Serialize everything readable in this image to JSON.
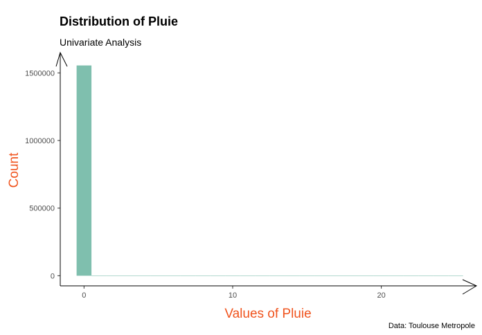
{
  "chart_data": {
    "type": "bar",
    "title": "Distribution of Pluie",
    "subtitle": "Univariate Analysis",
    "xlabel": "Values of Pluie",
    "ylabel": "Count",
    "caption": "Data: Toulouse Metropole",
    "xlim": [
      -1.6,
      26.4
    ],
    "ylim": [
      -75000,
      1650000
    ],
    "xticks": [
      0,
      10,
      20
    ],
    "yticks": [
      0,
      500000,
      1000000,
      1500000
    ],
    "bar_width": 1,
    "bins": [
      0,
      1,
      2,
      3,
      4,
      5,
      6,
      7,
      8,
      9,
      10,
      11,
      12,
      13,
      14,
      15,
      16,
      17,
      18,
      19,
      20,
      21,
      22,
      23,
      24,
      25
    ],
    "values": [
      1555000,
      0,
      0,
      0,
      0,
      0,
      0,
      0,
      0,
      0,
      0,
      0,
      0,
      0,
      0,
      0,
      0,
      0,
      0,
      0,
      0,
      0,
      0,
      0,
      0,
      0
    ],
    "grid": false,
    "legend": "none",
    "colors": {
      "bar": "#7fbfae",
      "axis_title": "#f0541e",
      "axis_line": "#000000",
      "tick_label": "#4d4d4d"
    }
  }
}
